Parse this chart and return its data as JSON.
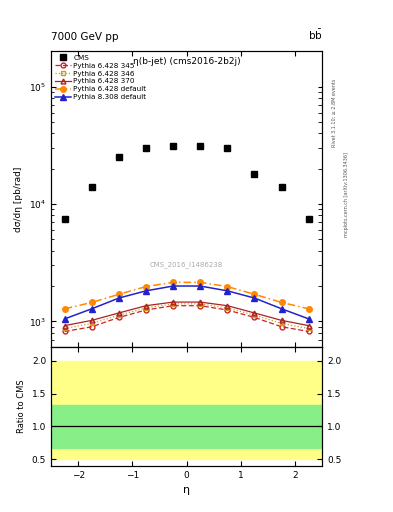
{
  "title_top": "7000 GeV pp",
  "title_right": "b$\\bar{\\mathrm{b}}$",
  "plot_title": "η(b-jet) (cms2016-2b2j)",
  "watermark": "CMS_2016_I1486238",
  "right_label_top": "Rivet 3.1.10; ≥ 2.8M events",
  "right_label_bottom": "mcplots.cern.ch [arXiv:1306.3436]",
  "xlabel": "η",
  "ylabel_main": "dσ/dη [pb/rad]",
  "ylabel_ratio": "Ratio to CMS",
  "xlim": [
    -2.5,
    2.5
  ],
  "ylim_main": [
    600,
    200000
  ],
  "ylim_ratio": [
    0.4,
    2.2
  ],
  "ratio_yticks": [
    0.5,
    1.0,
    1.5,
    2.0
  ],
  "eta_CMS": [
    -2.25,
    -1.75,
    -1.25,
    -0.75,
    -0.25,
    0.25,
    0.75,
    1.25,
    1.75,
    2.25
  ],
  "CMS_data": [
    7500,
    14000,
    25000,
    30000,
    31000,
    31000,
    30000,
    18000,
    14000,
    7500
  ],
  "eta_pythia": [
    -2.25,
    -1.75,
    -1.25,
    -0.75,
    -0.25,
    0.25,
    0.75,
    1.25,
    1.75,
    2.25
  ],
  "p6_345": [
    820,
    900,
    1080,
    1250,
    1360,
    1360,
    1250,
    1080,
    900,
    820
  ],
  "p6_346": [
    870,
    960,
    1130,
    1300,
    1410,
    1410,
    1300,
    1130,
    960,
    870
  ],
  "p6_370": [
    920,
    1020,
    1180,
    1360,
    1460,
    1460,
    1360,
    1180,
    1020,
    920
  ],
  "p6_default": [
    1280,
    1450,
    1700,
    1980,
    2150,
    2150,
    1980,
    1700,
    1450,
    1280
  ],
  "p8_default": [
    1050,
    1280,
    1580,
    1820,
    2000,
    2000,
    1820,
    1580,
    1280,
    1050
  ],
  "color_p6_345": "#cc2222",
  "color_p6_346": "#cc9922",
  "color_p6_370": "#aa2222",
  "color_p6_default": "#ff8800",
  "color_p8_default": "#2222cc",
  "color_CMS": "black",
  "green_band_low": 0.67,
  "green_band_high": 1.33,
  "yellow_band_low": 0.5,
  "yellow_band_high": 2.0,
  "ratio_line": 1.0
}
